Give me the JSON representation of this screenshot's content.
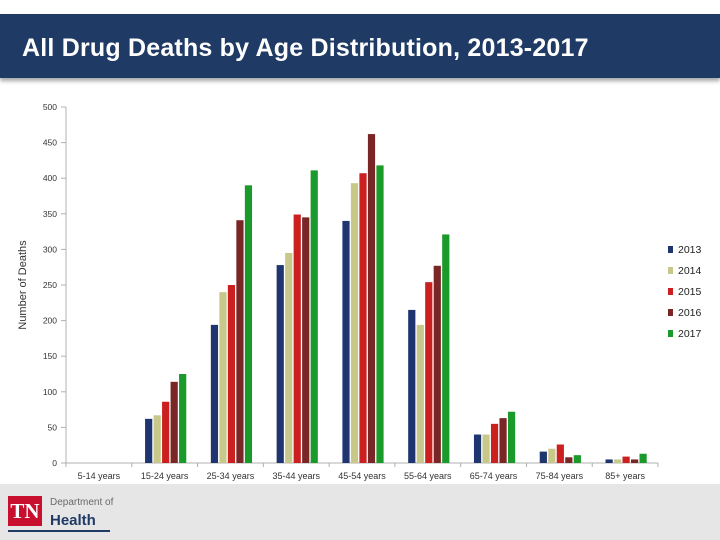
{
  "header": {
    "title": "All Drug Deaths by Age Distribution, 2013-2017"
  },
  "logo": {
    "mark": "TN",
    "line1": "Department of",
    "line2": "Health"
  },
  "chart_data": {
    "type": "bar",
    "title": "All Drug Deaths by Age Distribution, 2013-2017",
    "xlabel": "",
    "ylabel": "Number of Deaths",
    "ylim": [
      0,
      500
    ],
    "yticks": [
      0,
      50,
      100,
      150,
      200,
      250,
      300,
      350,
      400,
      450,
      500
    ],
    "grid": false,
    "legend_position": "right",
    "categories": [
      "5-14 years",
      "15-24 years",
      "25-34 years",
      "35-44 years",
      "45-54 years",
      "55-64 years",
      "65-74 years",
      "75-84 years",
      "85+ years"
    ],
    "series": [
      {
        "name": "2013",
        "color": "#1f3570",
        "values": [
          0,
          62,
          194,
          278,
          340,
          215,
          40,
          16,
          5
        ]
      },
      {
        "name": "2014",
        "color": "#c7c88a",
        "values": [
          0,
          67,
          240,
          295,
          393,
          194,
          40,
          20,
          5
        ]
      },
      {
        "name": "2015",
        "color": "#cc1f1f",
        "values": [
          0,
          86,
          250,
          349,
          407,
          254,
          55,
          26,
          9
        ]
      },
      {
        "name": "2016",
        "color": "#7a2626",
        "values": [
          0,
          114,
          341,
          345,
          462,
          277,
          63,
          8,
          5
        ]
      },
      {
        "name": "2017",
        "color": "#1a9a2a",
        "values": [
          0,
          125,
          390,
          411,
          418,
          321,
          72,
          11,
          13
        ]
      }
    ]
  }
}
